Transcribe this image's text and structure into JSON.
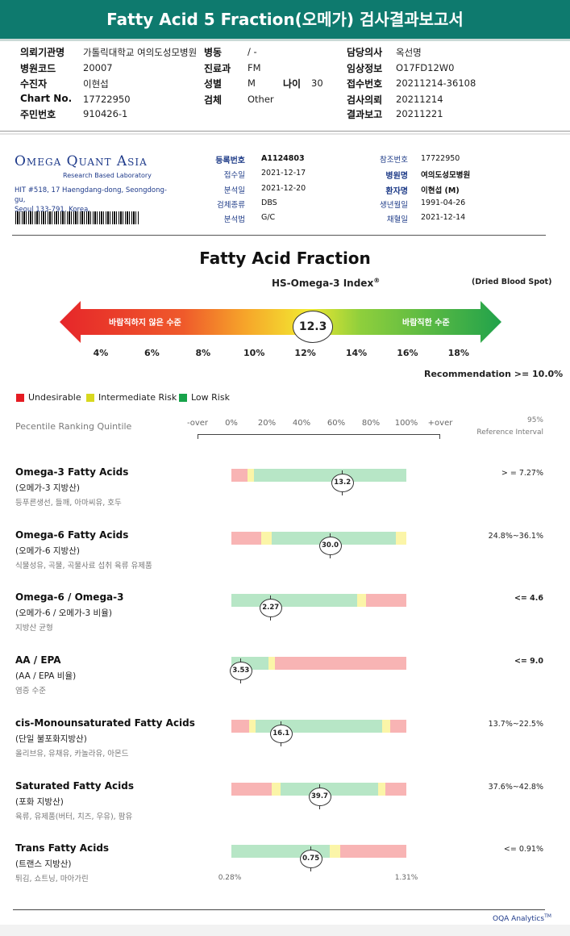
{
  "report_title": "Fatty Acid 5 Fraction(오메가) 검사결과보고서",
  "header": {
    "left": [
      {
        "label": "의뢰기관명",
        "value": "가톨릭대학교 여의도성모병원"
      },
      {
        "label": "병원코드",
        "value": "20007"
      },
      {
        "label": "수진자",
        "value": "이현섭"
      },
      {
        "label": "Chart No.",
        "value": "17722950"
      },
      {
        "label": "주민번호",
        "value": "910426-1"
      }
    ],
    "middle": [
      {
        "label": "병동",
        "value": "/ -"
      },
      {
        "label": "진료과",
        "value": "FM"
      },
      {
        "label": "성별",
        "value": "M"
      },
      {
        "label": "검체",
        "value": "Other"
      }
    ],
    "age_label": "나이",
    "age_value": "30",
    "right": [
      {
        "label": "담당의사",
        "value": "옥선명"
      },
      {
        "label": "임상정보",
        "value": "O17FD12W0"
      },
      {
        "label": "접수번호",
        "value": "20211214-36108"
      },
      {
        "label": "검사의뢰",
        "value": "20211214"
      },
      {
        "label": "결과보고",
        "value": "20211221"
      }
    ]
  },
  "lab": {
    "name": "Omega Quant Asia",
    "tagline": "Research Based Laboratory",
    "address_line1": "HIT #518, 17 Haengdang-dong, Seongdong-gu,",
    "address_line2": "Seoul 133-791, Korea."
  },
  "info_mid": [
    {
      "label": "등록번호",
      "value": "A1124803"
    },
    {
      "label": "접수일",
      "value": "2021-12-17"
    },
    {
      "label": "분석일",
      "value": "2021-12-20"
    },
    {
      "label": "검체종류",
      "value": "DBS"
    },
    {
      "label": "분석법",
      "value": "G/C"
    }
  ],
  "info_right": [
    {
      "label": "참조번호",
      "value": "17722950"
    },
    {
      "label": "병원명",
      "value": "여의도성모병원"
    },
    {
      "label": "환자명",
      "value": "이현섭 (M)"
    },
    {
      "label": "생년월일",
      "value": "1991-04-26"
    },
    {
      "label": "채혈일",
      "value": "2021-12-14"
    }
  ],
  "fraction_title": "Fatty Acid Fraction",
  "hs_index_label": "HS-Omega-3 Index",
  "hs_index_sup": "®",
  "sample_type": "(Dried Blood Spot)",
  "arrow_left_label": "바람직하지 않은 수준",
  "arrow_right_label": "바람직한 수준",
  "hs_value": "12.3",
  "hs_value_num": 12.3,
  "scale_ticks": [
    "4%",
    "6%",
    "8%",
    "10%",
    "12%",
    "14%",
    "16%",
    "18%"
  ],
  "recommendation": "Recommendation  >= 10.0%",
  "legend": [
    {
      "label": "Undesirable",
      "color": "#e51c23"
    },
    {
      "label": "Intermediate Risk",
      "color": "#d8d81f"
    },
    {
      "label": "Low Risk",
      "color": "#17a34a"
    }
  ],
  "ranking_label": "Pecentile Ranking Quintile",
  "percent_ticks": [
    "-over",
    "0%",
    "20%",
    "40%",
    "60%",
    "80%",
    "100%",
    "+over"
  ],
  "ref_head1": "95%",
  "ref_head2": "Reference Interval",
  "bar_colors": {
    "red": "#f8b4b4",
    "yellow": "#fbf5a8",
    "green": "#b7e6c6"
  },
  "fatty_acids": [
    {
      "name": "Omega-3 Fatty Acids",
      "sub": "(오메가-3 지방산)",
      "food": "등푸른생선, 들깨, 아마씨유, 호두",
      "value": "13.2",
      "value_pct": 63,
      "ref": "> = 7.27%",
      "ref_bold": false,
      "segments": [
        {
          "c": "red",
          "w": 9
        },
        {
          "c": "yellow",
          "w": 4
        },
        {
          "c": "green",
          "w": 87
        }
      ]
    },
    {
      "name": "Omega-6 Fatty Acids",
      "sub": "(오메가-6 지방산)",
      "food": "식물성유, 곡물, 곡물사료 섭취 육류 유제품",
      "value": "30.0",
      "value_pct": 56,
      "ref": "24.8%~36.1%",
      "ref_bold": false,
      "segments": [
        {
          "c": "red",
          "w": 17
        },
        {
          "c": "yellow",
          "w": 6
        },
        {
          "c": "green",
          "w": 71
        },
        {
          "c": "yellow",
          "w": 6
        }
      ]
    },
    {
      "name": "Omega-6 / Omega-3",
      "sub": "(오메가-6 / 오메가-3 비율)",
      "food": "지방산 균형",
      "value": "2.27",
      "value_pct": 22,
      "ref": "<= 4.6",
      "ref_bold": true,
      "segments": [
        {
          "c": "green",
          "w": 72
        },
        {
          "c": "yellow",
          "w": 5
        },
        {
          "c": "red",
          "w": 23
        }
      ]
    },
    {
      "name": "AA / EPA",
      "sub": "(AA / EPA 비율)",
      "food": "염증 수준",
      "value": "3.53",
      "value_pct": 5,
      "ref": "<= 9.0",
      "ref_bold": true,
      "segments": [
        {
          "c": "green",
          "w": 21
        },
        {
          "c": "yellow",
          "w": 4
        },
        {
          "c": "red",
          "w": 75
        }
      ]
    },
    {
      "name": "cis-Monounsaturated Fatty Acids",
      "sub": "(단일 불포화지방산)",
      "food": "올리브유, 유채유, 카놀라유, 아몬드",
      "value": "16.1",
      "value_pct": 28,
      "ref": "13.7%~22.5%",
      "ref_bold": false,
      "segments": [
        {
          "c": "red",
          "w": 10
        },
        {
          "c": "yellow",
          "w": 4
        },
        {
          "c": "green",
          "w": 72
        },
        {
          "c": "yellow",
          "w": 5
        },
        {
          "c": "red",
          "w": 9
        }
      ]
    },
    {
      "name": "Saturated Fatty Acids",
      "sub": "(포화 지방산)",
      "food": "육류, 유제품(버터, 치즈, 우유), 팜유",
      "value": "39.7",
      "value_pct": 50,
      "ref": "37.6%~42.8%",
      "ref_bold": false,
      "segments": [
        {
          "c": "red",
          "w": 23
        },
        {
          "c": "yellow",
          "w": 5
        },
        {
          "c": "green",
          "w": 56
        },
        {
          "c": "yellow",
          "w": 4
        },
        {
          "c": "red",
          "w": 12
        }
      ]
    },
    {
      "name": "Trans Fatty Acids",
      "sub": "(트랜스 지방산)",
      "food": "튀김, 쇼트닝, 마아가린",
      "value": "0.75",
      "value_pct": 45,
      "ref": "<= 0.91%",
      "ref_bold": false,
      "segments": [
        {
          "c": "green",
          "w": 56
        },
        {
          "c": "yellow",
          "w": 6
        },
        {
          "c": "red",
          "w": 38
        }
      ]
    }
  ],
  "trans_min": "0.28%",
  "trans_max": "1.31%",
  "footer": "OQA Analytics",
  "footer_tm": "TM"
}
